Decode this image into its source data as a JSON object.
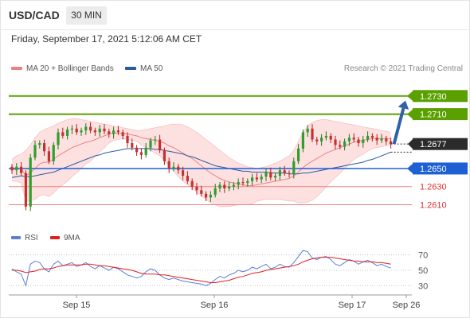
{
  "header": {
    "symbol": "USD/CAD",
    "interval": "30 MIN"
  },
  "timestamp": "Friday, September 17, 2021 5:12:06 AM CET",
  "legend": {
    "ma20": {
      "label": "MA 20 + Bollinger Bands",
      "color": "#f08080"
    },
    "ma50": {
      "label": "MA 50",
      "color": "#2c5aa0"
    }
  },
  "copyright": "Research © 2021 Trading Central",
  "rsi_legend": {
    "rsi": {
      "label": "RSI",
      "color": "#5b7fd6"
    },
    "ma9": {
      "label": "9MA",
      "color": "#e02020"
    }
  },
  "chart_data": [
    {
      "type": "candlestick",
      "title": "USD/CAD",
      "ylim": [
        1.2585,
        1.275
      ],
      "x_ticks": [
        "Sep 15",
        "Sep 16",
        "Sep 17",
        "Sep 26"
      ],
      "current_price": {
        "label": "1.2677",
        "value": 1.2677
      },
      "levels": [
        {
          "label": "1.2730",
          "value": 1.273,
          "kind": "resistance"
        },
        {
          "label": "1.2710",
          "value": 1.271,
          "kind": "resistance"
        },
        {
          "label": "1.2650",
          "value": 1.265,
          "kind": "pivot"
        },
        {
          "label": "1.2630",
          "value": 1.263,
          "kind": "support"
        },
        {
          "label": "1.2610",
          "value": 1.261,
          "kind": "support"
        }
      ],
      "target_arrow": {
        "from": 1.2677,
        "to": 1.2725,
        "direction": "up"
      },
      "close": [
        1.2648,
        1.2652,
        1.2645,
        1.2608,
        1.2662,
        1.2676,
        1.2678,
        1.2669,
        1.2658,
        1.2676,
        1.269,
        1.2686,
        1.2693,
        1.2694,
        1.269,
        1.2692,
        1.2696,
        1.2692,
        1.269,
        1.2694,
        1.2691,
        1.2688,
        1.2692,
        1.269,
        1.2686,
        1.2678,
        1.2673,
        1.2668,
        1.2665,
        1.2673,
        1.2681,
        1.2682,
        1.267,
        1.2658,
        1.265,
        1.2652,
        1.2648,
        1.2642,
        1.2636,
        1.263,
        1.2626,
        1.2622,
        1.2618,
        1.2621,
        1.2628,
        1.2632,
        1.2628,
        1.263,
        1.2632,
        1.2635,
        1.2634,
        1.2636,
        1.264,
        1.2638,
        1.2641,
        1.2646,
        1.264,
        1.2642,
        1.2648,
        1.2645,
        1.2644,
        1.2658,
        1.2672,
        1.269,
        1.2694,
        1.2682,
        1.268,
        1.2684,
        1.2686,
        1.2682,
        1.2676,
        1.2674,
        1.268,
        1.2684,
        1.2682,
        1.2678,
        1.2682,
        1.2686,
        1.2684,
        1.2681,
        1.2683,
        1.268,
        1.2677
      ],
      "ma20": [
        1.2648,
        1.265,
        1.265,
        1.2642,
        1.2645,
        1.265,
        1.2655,
        1.2657,
        1.2657,
        1.266,
        1.2664,
        1.2667,
        1.267,
        1.2673,
        1.2675,
        1.2677,
        1.2679,
        1.268,
        1.2682,
        1.2684,
        1.2686,
        1.2688,
        1.2689,
        1.2689,
        1.2689,
        1.2688,
        1.2687,
        1.2686,
        1.2684,
        1.2683,
        1.2682,
        1.2681,
        1.268,
        1.2678,
        1.2675,
        1.2673,
        1.267,
        1.2667,
        1.2664,
        1.2661,
        1.2657,
        1.2653,
        1.2649,
        1.2645,
        1.2642,
        1.2639,
        1.2637,
        1.2635,
        1.2634,
        1.2633,
        1.2632,
        1.2631,
        1.2631,
        1.2632,
        1.2633,
        1.2634,
        1.2635,
        1.2636,
        1.2637,
        1.2638,
        1.2639,
        1.2642,
        1.2646,
        1.2651,
        1.2655,
        1.2658,
        1.2661,
        1.2664,
        1.2667,
        1.2669,
        1.2671,
        1.2673,
        1.2675,
        1.2677,
        1.2679,
        1.268,
        1.2681,
        1.2682,
        1.2683,
        1.2683,
        1.2683,
        1.2683,
        1.2683
      ],
      "bb_upper": [
        1.266,
        1.2664,
        1.2666,
        1.267,
        1.2676,
        1.2684,
        1.269,
        1.2693,
        1.2695,
        1.2697,
        1.27,
        1.2702,
        1.2704,
        1.2705,
        1.2705,
        1.2704,
        1.2703,
        1.2702,
        1.2701,
        1.27,
        1.2699,
        1.2698,
        1.2697,
        1.2696,
        1.2695,
        1.2694,
        1.2693,
        1.2692,
        1.2692,
        1.2693,
        1.2694,
        1.2695,
        1.2696,
        1.2697,
        1.2698,
        1.2699,
        1.2699,
        1.2698,
        1.2696,
        1.2693,
        1.269,
        1.2686,
        1.2682,
        1.2678,
        1.2674,
        1.267,
        1.2666,
        1.2662,
        1.2659,
        1.2656,
        1.2654,
        1.2652,
        1.2651,
        1.265,
        1.2651,
        1.2652,
        1.2654,
        1.2656,
        1.2658,
        1.2661,
        1.2664,
        1.267,
        1.268,
        1.269,
        1.2697,
        1.2701,
        1.2703,
        1.2704,
        1.2704,
        1.2703,
        1.2702,
        1.2701,
        1.27,
        1.2699,
        1.2698,
        1.2697,
        1.2696,
        1.2695,
        1.2694,
        1.2693,
        1.2692,
        1.2691,
        1.269
      ],
      "bb_lower": [
        1.2636,
        1.2636,
        1.2634,
        1.2614,
        1.2614,
        1.2616,
        1.262,
        1.2621,
        1.2619,
        1.2623,
        1.2628,
        1.2632,
        1.2636,
        1.2641,
        1.2645,
        1.265,
        1.2655,
        1.2658,
        1.2663,
        1.2668,
        1.2673,
        1.2678,
        1.2681,
        1.2682,
        1.2683,
        1.2682,
        1.2681,
        1.268,
        1.2676,
        1.2673,
        1.267,
        1.2667,
        1.2664,
        1.2659,
        1.2652,
        1.2647,
        1.2641,
        1.2636,
        1.2632,
        1.2629,
        1.2624,
        1.262,
        1.2616,
        1.2612,
        1.261,
        1.2608,
        1.2608,
        1.2608,
        1.2609,
        1.261,
        1.261,
        1.261,
        1.2611,
        1.2614,
        1.2615,
        1.2616,
        1.2616,
        1.2616,
        1.2616,
        1.2615,
        1.2614,
        1.2614,
        1.2612,
        1.2612,
        1.2613,
        1.2615,
        1.2619,
        1.2624,
        1.263,
        1.2635,
        1.264,
        1.2645,
        1.265,
        1.2655,
        1.266,
        1.2663,
        1.2666,
        1.2669,
        1.2672,
        1.2673,
        1.2674,
        1.2675,
        1.2676
      ],
      "ma50": [
        1.264,
        1.2641,
        1.2642,
        1.2641,
        1.2641,
        1.2642,
        1.2643,
        1.2644,
        1.2645,
        1.2646,
        1.2648,
        1.265,
        1.2652,
        1.2654,
        1.2656,
        1.2658,
        1.266,
        1.2662,
        1.2664,
        1.2665,
        1.2667,
        1.2668,
        1.2669,
        1.267,
        1.2671,
        1.2672,
        1.2672,
        1.2672,
        1.2672,
        1.2672,
        1.2672,
        1.2671,
        1.2671,
        1.267,
        1.2669,
        1.2668,
        1.2667,
        1.2666,
        1.2664,
        1.2663,
        1.2661,
        1.2659,
        1.2657,
        1.2655,
        1.2653,
        1.2652,
        1.2651,
        1.265,
        1.2649,
        1.2648,
        1.2647,
        1.2647,
        1.2646,
        1.2646,
        1.2646,
        1.2646,
        1.2645,
        1.2645,
        1.2645,
        1.2645,
        1.2644,
        1.2644,
        1.2644,
        1.2645,
        1.2645,
        1.2646,
        1.2647,
        1.2648,
        1.2649,
        1.265,
        1.2651,
        1.2652,
        1.2653,
        1.2654,
        1.2655,
        1.2656,
        1.2657,
        1.2659,
        1.266,
        1.2662,
        1.2664,
        1.2666,
        1.2668
      ]
    },
    {
      "type": "line",
      "title": "RSI",
      "ylim": [
        20,
        80
      ],
      "y_ticks": [
        {
          "value": 70,
          "label": "70"
        },
        {
          "value": 50,
          "label": "50"
        },
        {
          "value": 30,
          "label": "30"
        }
      ],
      "series": [
        {
          "name": "RSI",
          "color": "#5b7fd6",
          "values": [
            52,
            48,
            45,
            30,
            58,
            62,
            60,
            52,
            48,
            58,
            62,
            56,
            58,
            60,
            55,
            57,
            60,
            55,
            52,
            56,
            53,
            50,
            54,
            52,
            48,
            44,
            42,
            40,
            42,
            48,
            52,
            50,
            44,
            40,
            38,
            40,
            38,
            36,
            35,
            34,
            33,
            32,
            30,
            33,
            38,
            42,
            40,
            44,
            46,
            50,
            48,
            50,
            54,
            52,
            55,
            58,
            52,
            54,
            58,
            55,
            54,
            60,
            68,
            76,
            74,
            66,
            64,
            67,
            68,
            64,
            58,
            56,
            60,
            64,
            62,
            58,
            61,
            63,
            60,
            56,
            58,
            55,
            53
          ]
        },
        {
          "name": "9MA",
          "color": "#e02020",
          "values": [
            50,
            50,
            49,
            47,
            48,
            49,
            51,
            52,
            52,
            53,
            55,
            56,
            57,
            57,
            57,
            57,
            58,
            58,
            57,
            56,
            56,
            55,
            54,
            53,
            52,
            51,
            50,
            48,
            46,
            45,
            45,
            45,
            44,
            44,
            43,
            42,
            41,
            40,
            39,
            38,
            37,
            36,
            35,
            34,
            34,
            35,
            36,
            37,
            39,
            41,
            42,
            44,
            46,
            47,
            48,
            50,
            51,
            52,
            53,
            54,
            55,
            56,
            58,
            61,
            63,
            65,
            66,
            67,
            67,
            67,
            66,
            65,
            64,
            63,
            62,
            62,
            61,
            61,
            61,
            60,
            60,
            59,
            58
          ]
        }
      ]
    }
  ]
}
